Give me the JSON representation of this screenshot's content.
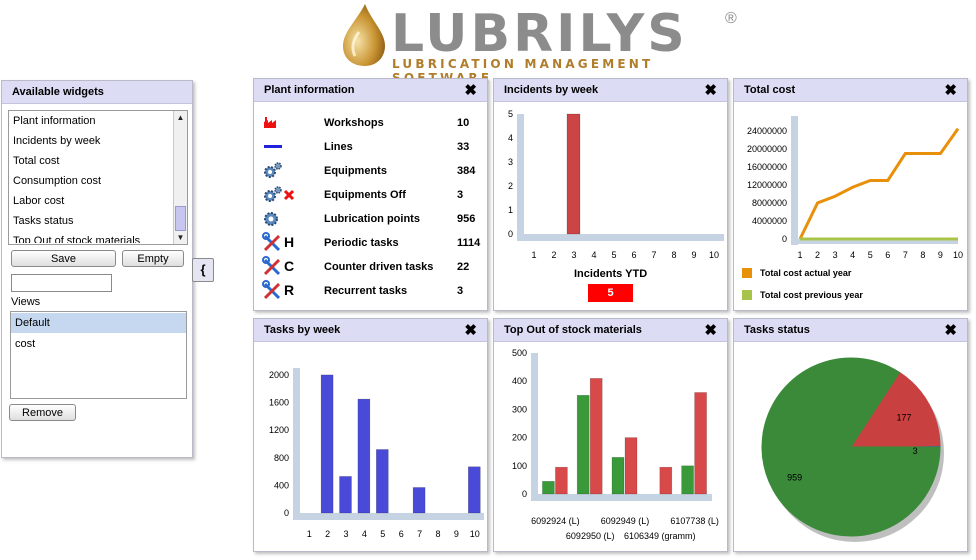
{
  "brand": {
    "name": "LUBRILYS",
    "reg": "®",
    "tagline": "LUBRICATION MANAGEMENT SOFTWARE",
    "accent": "#c99432"
  },
  "widgets": {
    "title": "Available widgets",
    "items": [
      "Plant information",
      "Incidents by week",
      "Total cost",
      "Consumption cost",
      "Labor cost",
      "Tasks status",
      "Top Out of stock materials"
    ],
    "save_label": "Save",
    "empty_label": "Empty",
    "brace_label": "{",
    "name_value": "",
    "views_label": "Views",
    "views": [
      "Default",
      "cost"
    ],
    "selected_view": "Default",
    "remove_label": "Remove"
  },
  "plant": {
    "title": "Plant information",
    "close": "✖",
    "rows": [
      {
        "icon": "factory-icon",
        "label": "Workshops",
        "value": "10",
        "letter": ""
      },
      {
        "icon": "line-icon",
        "label": "Lines",
        "value": "33",
        "letter": ""
      },
      {
        "icon": "gears-icon",
        "label": "Equipments",
        "value": "384",
        "letter": ""
      },
      {
        "icon": "gears-off-icon",
        "label": "Equipments Off",
        "value": "3",
        "letter": ""
      },
      {
        "icon": "gear-icon",
        "label": "Lubrication points",
        "value": "956",
        "letter": ""
      },
      {
        "icon": "tools-icon",
        "label": "Periodic tasks",
        "value": "1114",
        "letter": "H"
      },
      {
        "icon": "tools-icon",
        "label": "Counter driven tasks",
        "value": "22",
        "letter": "C"
      },
      {
        "icon": "tools-icon",
        "label": "Recurrent tasks",
        "value": "3",
        "letter": "R"
      }
    ]
  },
  "incidents": {
    "title": "Incidents by week",
    "close": "✖",
    "ytd_label": "Incidents YTD",
    "ytd_value": "5"
  },
  "total_cost": {
    "title": "Total cost",
    "close": "✖",
    "legend": [
      "Total cost actual year",
      "Total cost previous year"
    ]
  },
  "tasks_week": {
    "title": "Tasks by week",
    "close": "✖"
  },
  "out_of_stock": {
    "title": "Top Out of stock materials",
    "close": "✖"
  },
  "tasks_status": {
    "title": "Tasks status",
    "close": "✖"
  },
  "chart_data": [
    {
      "id": "incidents",
      "type": "bar",
      "categories": [
        "1",
        "2",
        "3",
        "4",
        "5",
        "6",
        "7",
        "8",
        "9",
        "10"
      ],
      "values": [
        0,
        0,
        5,
        0,
        0,
        0,
        0,
        0,
        0,
        0
      ],
      "ylim": [
        0,
        5
      ],
      "yticks": [
        0,
        1,
        2,
        3,
        4,
        5
      ],
      "color": "#cc4444"
    },
    {
      "id": "total_cost",
      "type": "line",
      "x": [
        1,
        2,
        3,
        4,
        5,
        6,
        7,
        8,
        9,
        10
      ],
      "series": [
        {
          "name": "Total cost actual year",
          "color": "#e8900a",
          "values": [
            0,
            8000000,
            9500000,
            11500000,
            13000000,
            13000000,
            19000000,
            19000000,
            19000000,
            24500000
          ]
        },
        {
          "name": "Total cost previous year",
          "color": "#a8c44a",
          "values": [
            0,
            0,
            0,
            0,
            0,
            0,
            0,
            0,
            0,
            0
          ]
        }
      ],
      "ylim": [
        0,
        26000000
      ],
      "yticks": [
        0,
        4000000,
        8000000,
        12000000,
        16000000,
        20000000,
        24000000
      ]
    },
    {
      "id": "tasks_week",
      "type": "bar",
      "categories": [
        "1",
        "2",
        "3",
        "4",
        "5",
        "6",
        "7",
        "8",
        "9",
        "10"
      ],
      "values": [
        0,
        2000,
        530,
        1650,
        920,
        0,
        370,
        0,
        0,
        670
      ],
      "ylim": [
        0,
        2100
      ],
      "yticks": [
        0,
        400,
        800,
        1200,
        1600,
        2000
      ],
      "color": "#4a4ad8"
    },
    {
      "id": "out_of_stock",
      "type": "bar",
      "categories": [
        "6092924 (L)",
        "6092950 (L)",
        "6092949 (L)",
        "6106349 (gramm)",
        "6107738 (L)"
      ],
      "series": [
        {
          "color": "#3a9a3a",
          "values": [
            45,
            350,
            130,
            0,
            100
          ]
        },
        {
          "color": "#d84a4a",
          "values": [
            95,
            410,
            200,
            95,
            360
          ]
        }
      ],
      "ylim": [
        0,
        500
      ],
      "yticks": [
        0,
        100,
        200,
        300,
        400,
        500
      ]
    },
    {
      "id": "tasks_status",
      "type": "pie",
      "slices": [
        {
          "label": "959",
          "value": 959,
          "color": "#3a8a3a"
        },
        {
          "label": "177",
          "value": 177,
          "color": "#c84040"
        },
        {
          "label": "3",
          "value": 3,
          "color": "#4455cc"
        }
      ]
    }
  ]
}
